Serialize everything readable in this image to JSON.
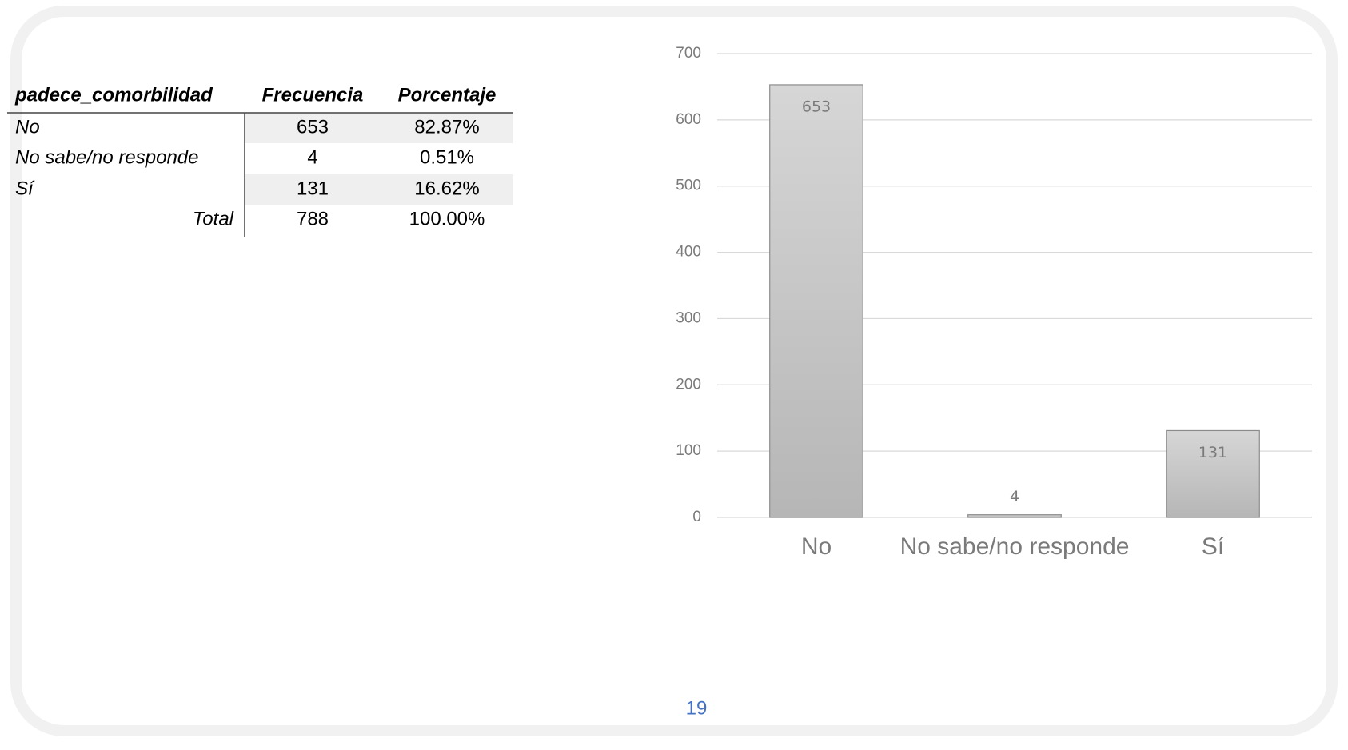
{
  "table": {
    "header": [
      "padece_comorbilidad",
      "Frecuencia",
      "Porcentaje"
    ],
    "rows": [
      [
        "No",
        "653",
        "82.87%"
      ],
      [
        "No sabe/no responde",
        "4",
        "0.51%"
      ],
      [
        "Sí",
        "131",
        "16.62%"
      ],
      [
        "Total",
        "788",
        "100.00%"
      ]
    ]
  },
  "chart_data": {
    "type": "bar",
    "categories": [
      "No",
      "No sabe/no responde",
      "Sí"
    ],
    "values": [
      653,
      4,
      131
    ],
    "color": "#c4c4c4",
    "ylim": [
      0,
      700
    ],
    "yticks": [
      0,
      100,
      200,
      300,
      400,
      500,
      600,
      700
    ],
    "grid": true
  },
  "page_number": "19"
}
